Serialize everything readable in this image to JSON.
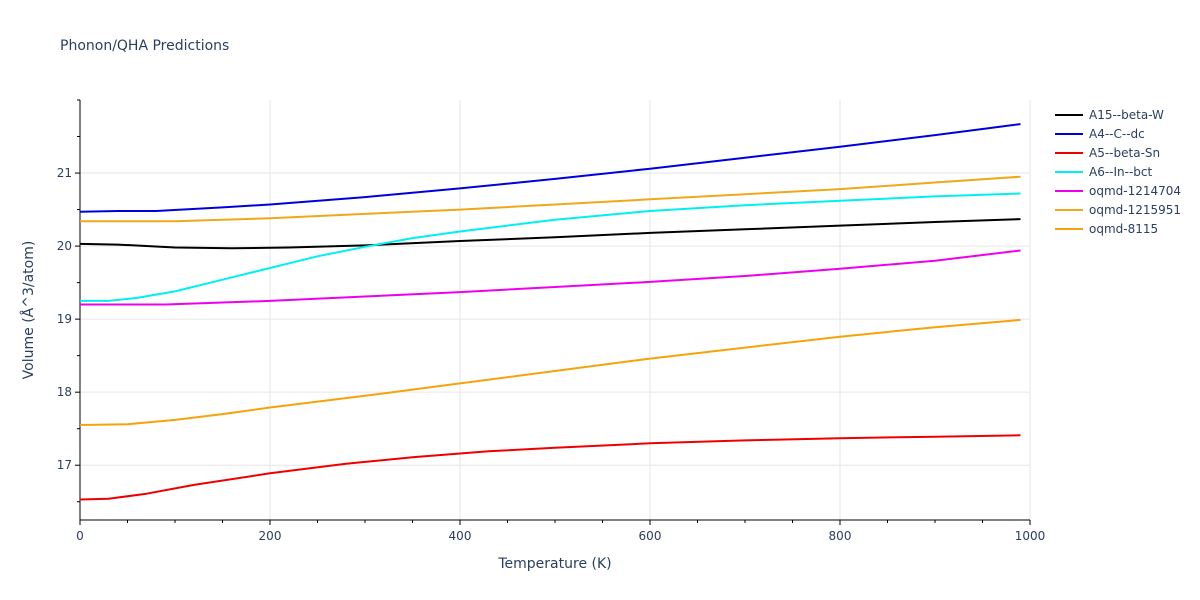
{
  "chart_data": {
    "type": "line",
    "title": "Phonon/QHA Predictions",
    "xlabel": "Temperature (K)",
    "ylabel": "Volume (Å^3/atom)",
    "xlim": [
      0,
      1000
    ],
    "ylim": [
      16.25,
      22.0
    ],
    "x_ticks": [
      0,
      200,
      400,
      600,
      800,
      1000
    ],
    "y_ticks": [
      17,
      18,
      19,
      20,
      21
    ],
    "grid": true,
    "legend_position": "top-right",
    "series": [
      {
        "name": "A15--beta-W",
        "color": "#000000",
        "x": [
          0,
          40,
          100,
          160,
          220,
          300,
          400,
          500,
          600,
          700,
          800,
          900,
          990
        ],
        "y": [
          20.03,
          20.02,
          19.98,
          19.97,
          19.98,
          20.01,
          20.07,
          20.12,
          20.18,
          20.23,
          20.28,
          20.33,
          20.37
        ]
      },
      {
        "name": "A4--C--dc",
        "color": "#0000dd",
        "x": [
          0,
          40,
          80,
          150,
          200,
          300,
          400,
          500,
          600,
          700,
          800,
          900,
          990
        ],
        "y": [
          20.47,
          20.48,
          20.48,
          20.53,
          20.57,
          20.67,
          20.79,
          20.92,
          21.06,
          21.21,
          21.36,
          21.52,
          21.67
        ]
      },
      {
        "name": "A5--beta-Sn",
        "color": "#ee0000",
        "x": [
          0,
          30,
          70,
          120,
          200,
          280,
          350,
          430,
          500,
          600,
          700,
          800,
          900,
          990
        ],
        "y": [
          16.53,
          16.54,
          16.61,
          16.73,
          16.89,
          17.02,
          17.11,
          17.19,
          17.24,
          17.3,
          17.34,
          17.37,
          17.39,
          17.41
        ]
      },
      {
        "name": "A6--In--bct",
        "color": "#00f0f0",
        "x": [
          0,
          30,
          60,
          100,
          150,
          200,
          250,
          300,
          350,
          400,
          450,
          500,
          600,
          700,
          800,
          900,
          990
        ],
        "y": [
          19.25,
          19.25,
          19.29,
          19.38,
          19.54,
          19.7,
          19.86,
          19.99,
          20.11,
          20.2,
          20.28,
          20.36,
          20.48,
          20.56,
          20.62,
          20.68,
          20.72
        ]
      },
      {
        "name": "oqmd-1214704",
        "color": "#ee00ee",
        "x": [
          0,
          90,
          200,
          300,
          400,
          500,
          600,
          700,
          800,
          900,
          990
        ],
        "y": [
          19.2,
          19.2,
          19.25,
          19.31,
          19.37,
          19.44,
          19.51,
          19.59,
          19.69,
          19.8,
          19.94
        ]
      },
      {
        "name": "oqmd-1215951",
        "color": "#f0a818",
        "x": [
          0,
          100,
          200,
          300,
          400,
          500,
          600,
          700,
          800,
          900,
          990
        ],
        "y": [
          20.34,
          20.34,
          20.38,
          20.44,
          20.5,
          20.57,
          20.64,
          20.71,
          20.78,
          20.87,
          20.95
        ]
      },
      {
        "name": "oqmd-8115",
        "color": "#f5a30a",
        "x": [
          0,
          50,
          100,
          150,
          200,
          300,
          400,
          500,
          600,
          700,
          800,
          900,
          990
        ],
        "y": [
          17.55,
          17.56,
          17.62,
          17.7,
          17.79,
          17.95,
          18.12,
          18.29,
          18.46,
          18.61,
          18.76,
          18.89,
          18.99
        ]
      }
    ]
  }
}
